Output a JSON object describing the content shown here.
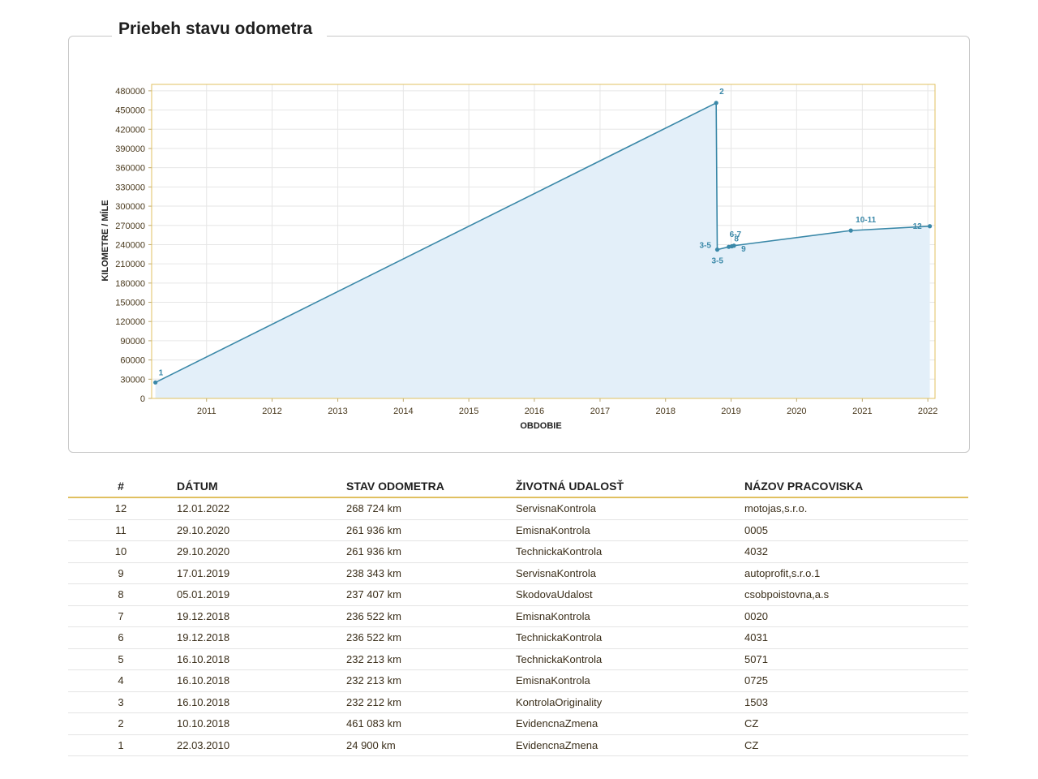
{
  "panel": {
    "title": "Priebeh stavu odometra"
  },
  "chart_data": {
    "type": "area",
    "xlabel": "OBDOBIE",
    "ylabel": "KILOMETRE / MÍLE",
    "ylim": [
      0,
      490000
    ],
    "xlim": [
      "2010-03-01",
      "2022-02-10"
    ],
    "yticks": [
      0,
      30000,
      60000,
      90000,
      120000,
      150000,
      180000,
      210000,
      240000,
      270000,
      300000,
      330000,
      360000,
      390000,
      420000,
      450000,
      480000
    ],
    "xticks": [
      "2011",
      "2012",
      "2013",
      "2014",
      "2015",
      "2016",
      "2017",
      "2018",
      "2019",
      "2020",
      "2021",
      "2022"
    ],
    "grid": true,
    "colors": {
      "line": "#3a88a8",
      "fill": "#e3eff9",
      "grid": "#e6e6e6",
      "frame": "#e0c060"
    },
    "series": [
      {
        "x": [
          "2010-03-22",
          "2018-10-10",
          "2018-10-16",
          "2018-12-19",
          "2019-01-05",
          "2019-01-17",
          "2020-10-29",
          "2022-01-12"
        ],
        "values": [
          24900,
          461083,
          232212,
          236522,
          237407,
          238343,
          261936,
          268724
        ],
        "point_labels": [
          "1",
          "2",
          "3-5",
          "6-7",
          "8",
          "9",
          "10-11",
          "12"
        ]
      }
    ]
  },
  "table": {
    "headers": [
      "#",
      "DÁTUM",
      "STAV ODOMETRA",
      "ŽIVOTNÁ UDALOSŤ",
      "NÁZOV PRACOVISKA"
    ],
    "rows": [
      [
        "12",
        "12.01.2022",
        "268 724 km",
        "ServisnaKontrola",
        "motojas,s.r.o."
      ],
      [
        "11",
        "29.10.2020",
        "261 936 km",
        "EmisnaKontrola",
        "0005"
      ],
      [
        "10",
        "29.10.2020",
        "261 936 km",
        "TechnickaKontrola",
        "4032"
      ],
      [
        "9",
        "17.01.2019",
        "238 343 km",
        "ServisnaKontrola",
        "autoprofit,s.r.o.1"
      ],
      [
        "8",
        "05.01.2019",
        "237 407 km",
        "SkodovaUdalost",
        "csobpoistovna,a.s"
      ],
      [
        "7",
        "19.12.2018",
        "236 522 km",
        "EmisnaKontrola",
        "0020"
      ],
      [
        "6",
        "19.12.2018",
        "236 522 km",
        "TechnickaKontrola",
        "4031"
      ],
      [
        "5",
        "16.10.2018",
        "232 213 km",
        "TechnickaKontrola",
        "5071"
      ],
      [
        "4",
        "16.10.2018",
        "232 213 km",
        "EmisnaKontrola",
        "0725"
      ],
      [
        "3",
        "16.10.2018",
        "232 212 km",
        "KontrolaOriginality",
        "1503"
      ],
      [
        "2",
        "10.10.2018",
        "461 083 km",
        "EvidencnaZmena",
        "CZ"
      ],
      [
        "1",
        "22.03.2010",
        "24 900 km",
        "EvidencnaZmena",
        "CZ"
      ]
    ]
  }
}
